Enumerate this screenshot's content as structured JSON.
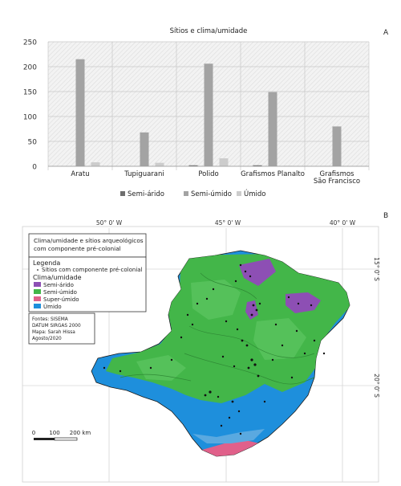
{
  "panel_a": {
    "letter": "A"
  },
  "panel_b": {
    "letter": "B",
    "longitudes": [
      "50° 0' W",
      "45° 0' W",
      "40° 0' W"
    ],
    "latitudes": [
      "15° 0' S",
      "20° 0' S"
    ],
    "legend": {
      "title_line1": "Clima/umidade e sítios arqueológicos",
      "title_line2": "com componente pré-colonial",
      "heading": "Legenda",
      "sites_item": "Sítios com componente pré-colonial",
      "climate_heading": "Clima/umidade",
      "items": [
        {
          "label": "Semi-árido",
          "color": "#8d4fb4"
        },
        {
          "label": "Semi-úmido",
          "color": "#43b649"
        },
        {
          "label": "Super-úmido",
          "color": "#e0608a"
        },
        {
          "label": "Úmido",
          "color": "#1e8fdc"
        }
      ],
      "sources": [
        "Fontes: SISEMA",
        "DATUM SIRGAS 2000",
        "Mapa: Sarah Hissa",
        "Agosto/2020"
      ]
    },
    "scale": {
      "ticks": [
        "0",
        "100",
        "200 km"
      ]
    }
  },
  "chart_data": {
    "type": "bar",
    "title": "Sítios e clima/umidade",
    "categories": [
      "Aratu",
      "Tupiguarani",
      "Polido",
      "Grafismos Planalto",
      "Grafismos São Francisco"
    ],
    "category_lines": [
      [
        "Aratu"
      ],
      [
        "Tupiguarani"
      ],
      [
        "Polido"
      ],
      [
        "Grafismos Planalto"
      ],
      [
        "Grafismos",
        "São Francisco"
      ]
    ],
    "series": [
      {
        "name": "Semi-árido",
        "values": [
          0,
          0,
          2,
          2,
          0
        ],
        "color": "#6e6e6e"
      },
      {
        "name": "Semi-úmido",
        "values": [
          215,
          68,
          206,
          149,
          80
        ],
        "color": "#a3a3a3"
      },
      {
        "name": "Úmido",
        "values": [
          8,
          7,
          16,
          1,
          0
        ],
        "color": "#cccccc"
      }
    ],
    "ylim": [
      0,
      250
    ],
    "yticks": [
      0,
      50,
      100,
      150,
      200,
      250
    ],
    "grid": true,
    "legend_position": "bottom"
  }
}
